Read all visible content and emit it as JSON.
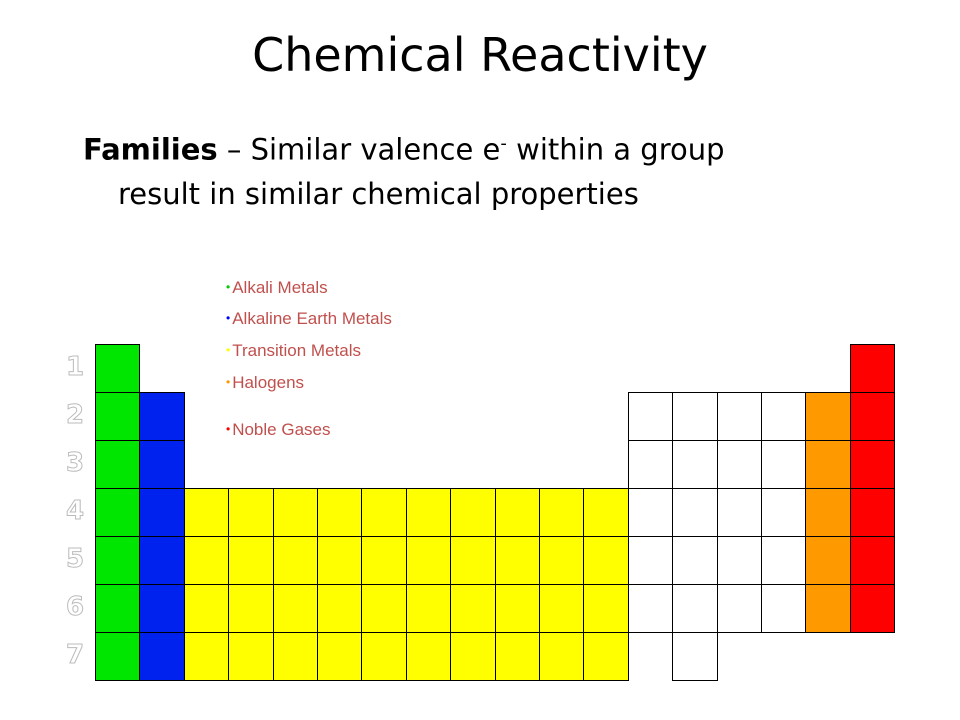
{
  "title": "Chemical Reactivity",
  "subtitle": {
    "bold": "Families",
    "dash": " – ",
    "text_before_sup": "Similar valence e",
    "sup": "-",
    "text_after_sup": " within a group",
    "line2": "result in similar chemical properties"
  },
  "legend": [
    {
      "label": "Alkali Metals",
      "bullet_color": "#00cc00"
    },
    {
      "label": "Alkaline Earth Metals",
      "bullet_color": "#0000ff"
    },
    {
      "label": "Transition Metals",
      "bullet_color": "#ffff00"
    },
    {
      "label": "Halogens",
      "bullet_color": "#ff9900"
    },
    {
      "label": "Noble Gases",
      "bullet_color": "#ff0000"
    }
  ],
  "periods": [
    "1",
    "2",
    "3",
    "4",
    "5",
    "6",
    "7"
  ],
  "colors": {
    "alkali": "#00e600",
    "alkaline": "#0022ee",
    "transition": "#ffff00",
    "halogen": "#ff9900",
    "noble": "#ff0000",
    "other": "#ffffff"
  }
}
